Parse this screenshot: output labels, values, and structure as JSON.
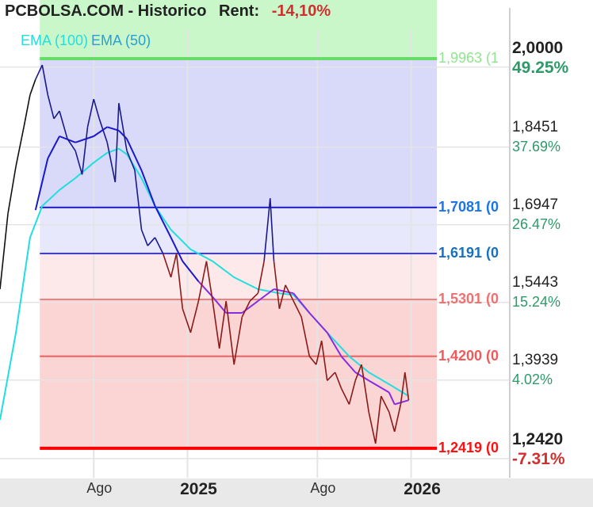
{
  "header": {
    "title": "PCBOLSA.COM - Historico",
    "rent_label": "Rent:",
    "rent_value": "-14,10%"
  },
  "legend": [
    {
      "label": "EMA (100)",
      "color": "#22dede"
    },
    {
      "label": "EMA (50)",
      "color": "#2a9fd6"
    }
  ],
  "chart_data": {
    "type": "line",
    "xlim": [
      "2024-03-01",
      "2026-06-11"
    ],
    "ylim": [
      1.185,
      2.1098
    ],
    "x_ticks": [
      {
        "date": "2024-08-01",
        "label": "Ago",
        "bold": false
      },
      {
        "date": "2025-01-01",
        "label": "2025",
        "bold": true
      },
      {
        "date": "2025-08-01",
        "label": "Ago",
        "bold": false
      },
      {
        "date": "2026-01-01",
        "label": "2026",
        "bold": true
      }
    ],
    "y_ticks": [
      {
        "value": 2.0,
        "label": "2,0000",
        "pct": "49.25%",
        "bold": true,
        "negative": false
      },
      {
        "value": 1.8451,
        "label": "1,8451",
        "pct": "37.69%",
        "bold": false,
        "negative": false
      },
      {
        "value": 1.6947,
        "label": "1,6947",
        "pct": "26.47%",
        "bold": false,
        "negative": false
      },
      {
        "value": 1.5443,
        "label": "1,5443",
        "pct": "15.24%",
        "bold": false,
        "negative": false
      },
      {
        "value": 1.3939,
        "label": "1,3939",
        "pct": "4.02%",
        "bold": false,
        "negative": false
      },
      {
        "value": 1.242,
        "label": "1,2420",
        "pct": "-7.31%",
        "bold": true,
        "negative": true
      }
    ],
    "fib_range": [
      "2024-05-05",
      "2026-02-12"
    ],
    "fib_levels": [
      {
        "value": 1.9963,
        "label": "1,9963 (1",
        "color": "#66dd66",
        "text_color": "#8ee68e"
      },
      {
        "value": 1.7081,
        "label": "1,7081 (0",
        "color": "#1a1aff",
        "text_color": "#1a73e8"
      },
      {
        "value": 1.6191,
        "label": "1,6191 (0",
        "color": "#3a3aff",
        "text_color": "#1a6fbf"
      },
      {
        "value": 1.5301,
        "label": "1,5301 (0",
        "color": "#f08080",
        "text_color": "#f07070"
      },
      {
        "value": 1.42,
        "label": "1,4200 (0",
        "color": "#f06060",
        "text_color": "#f05a5a"
      },
      {
        "value": 1.2419,
        "label": "1,2419 (0",
        "color": "#ff0000",
        "text_color": "#ff1010"
      }
    ],
    "zones": [
      {
        "from": 2.1098,
        "to": 1.9963,
        "color": "#c9f7c9"
      },
      {
        "from": 1.9963,
        "to": 1.7081,
        "color": "#d9d9fa"
      },
      {
        "from": 1.7081,
        "to": 1.6191,
        "color": "#e8e8fc"
      },
      {
        "from": 1.6191,
        "to": 1.5301,
        "color": "#fde9e9"
      },
      {
        "from": 1.5301,
        "to": 1.2419,
        "color": "#fbd4d4"
      }
    ],
    "series": [
      {
        "key": "price",
        "points": [
          [
            "2024-03-01",
            1.55
          ],
          [
            "2024-03-14",
            1.696
          ],
          [
            "2024-03-27",
            1.788
          ],
          [
            "2024-04-09",
            1.864
          ],
          [
            "2024-04-19",
            1.926
          ],
          [
            "2024-04-28",
            1.956
          ],
          [
            "2024-05-09",
            1.984
          ],
          [
            "2024-05-18",
            1.926
          ],
          [
            "2024-05-28",
            1.88
          ],
          [
            "2024-06-06",
            1.895
          ],
          [
            "2024-06-19",
            1.841
          ],
          [
            "2024-07-02",
            1.818
          ],
          [
            "2024-07-13",
            1.772
          ],
          [
            "2024-07-22",
            1.864
          ],
          [
            "2024-08-01",
            1.918
          ],
          [
            "2024-08-10",
            1.88
          ],
          [
            "2024-08-23",
            1.834
          ],
          [
            "2024-09-05",
            1.757
          ],
          [
            "2024-09-11",
            1.91
          ],
          [
            "2024-09-24",
            1.818
          ],
          [
            "2024-10-07",
            1.78
          ],
          [
            "2024-10-18",
            1.665
          ],
          [
            "2024-10-28",
            1.634
          ],
          [
            "2024-11-09",
            1.65
          ],
          [
            "2024-11-22",
            1.619
          ],
          [
            "2024-12-05",
            1.573
          ],
          [
            "2024-12-14",
            1.619
          ],
          [
            "2024-12-24",
            1.512
          ],
          [
            "2025-01-06",
            1.466
          ],
          [
            "2025-01-19",
            1.527
          ],
          [
            "2025-02-01",
            1.604
          ],
          [
            "2025-02-11",
            1.527
          ],
          [
            "2025-02-22",
            1.435
          ],
          [
            "2025-03-05",
            1.527
          ],
          [
            "2025-03-18",
            1.404
          ],
          [
            "2025-03-31",
            1.496
          ],
          [
            "2025-04-13",
            1.527
          ],
          [
            "2025-04-26",
            1.542
          ],
          [
            "2025-05-06",
            1.604
          ],
          [
            "2025-05-16",
            1.726
          ],
          [
            "2025-05-22",
            1.604
          ],
          [
            "2025-05-31",
            1.512
          ],
          [
            "2025-06-10",
            1.558
          ],
          [
            "2025-06-23",
            1.527
          ],
          [
            "2025-07-06",
            1.496
          ],
          [
            "2025-07-19",
            1.42
          ],
          [
            "2025-07-30",
            1.404
          ],
          [
            "2025-08-08",
            1.45
          ],
          [
            "2025-08-17",
            1.373
          ],
          [
            "2025-08-30",
            1.389
          ],
          [
            "2025-09-09",
            1.358
          ],
          [
            "2025-09-22",
            1.327
          ],
          [
            "2025-10-02",
            1.373
          ],
          [
            "2025-10-12",
            1.404
          ],
          [
            "2025-10-24",
            1.312
          ],
          [
            "2025-11-04",
            1.251
          ],
          [
            "2025-11-13",
            1.343
          ],
          [
            "2025-11-26",
            1.312
          ],
          [
            "2025-12-05",
            1.274
          ],
          [
            "2025-12-15",
            1.327
          ],
          [
            "2025-12-22",
            1.389
          ],
          [
            "2025-12-28",
            1.335
          ]
        ]
      },
      {
        "key": "ema50",
        "name": "EMA (50)",
        "color": "#1a1acc",
        "color_low": "#8a2be2",
        "points": [
          [
            "2024-04-28",
            1.703
          ],
          [
            "2024-05-18",
            1.803
          ],
          [
            "2024-06-06",
            1.846
          ],
          [
            "2024-07-02",
            1.834
          ],
          [
            "2024-08-01",
            1.846
          ],
          [
            "2024-08-23",
            1.864
          ],
          [
            "2024-09-11",
            1.857
          ],
          [
            "2024-09-24",
            1.841
          ],
          [
            "2024-10-18",
            1.78
          ],
          [
            "2024-11-09",
            1.711
          ],
          [
            "2024-12-05",
            1.65
          ],
          [
            "2024-12-24",
            1.604
          ],
          [
            "2025-01-19",
            1.565
          ],
          [
            "2025-02-11",
            1.535
          ],
          [
            "2025-03-05",
            1.504
          ],
          [
            "2025-03-31",
            1.504
          ],
          [
            "2025-04-26",
            1.527
          ],
          [
            "2025-05-22",
            1.55
          ],
          [
            "2025-06-23",
            1.542
          ],
          [
            "2025-07-19",
            1.504
          ],
          [
            "2025-08-17",
            1.466
          ],
          [
            "2025-09-09",
            1.42
          ],
          [
            "2025-10-02",
            1.389
          ],
          [
            "2025-10-24",
            1.373
          ],
          [
            "2025-11-26",
            1.35
          ],
          [
            "2025-12-05",
            1.327
          ],
          [
            "2025-12-28",
            1.335
          ]
        ]
      },
      {
        "key": "ema100",
        "name": "EMA (100)",
        "color": "#22dede",
        "points": [
          [
            "2024-03-01",
            1.297
          ],
          [
            "2024-03-27",
            1.466
          ],
          [
            "2024-04-19",
            1.65
          ],
          [
            "2024-05-09",
            1.711
          ],
          [
            "2024-06-06",
            1.742
          ],
          [
            "2024-07-02",
            1.765
          ],
          [
            "2024-08-01",
            1.795
          ],
          [
            "2024-08-23",
            1.814
          ],
          [
            "2024-09-11",
            1.822
          ],
          [
            "2024-09-24",
            1.811
          ],
          [
            "2024-10-18",
            1.765
          ],
          [
            "2024-11-09",
            1.711
          ],
          [
            "2024-12-05",
            1.665
          ],
          [
            "2025-01-06",
            1.627
          ],
          [
            "2025-02-11",
            1.604
          ],
          [
            "2025-03-18",
            1.573
          ],
          [
            "2025-04-26",
            1.55
          ],
          [
            "2025-05-31",
            1.542
          ],
          [
            "2025-06-23",
            1.539
          ],
          [
            "2025-07-19",
            1.504
          ],
          [
            "2025-08-17",
            1.466
          ],
          [
            "2025-09-22",
            1.42
          ],
          [
            "2025-10-24",
            1.389
          ],
          [
            "2025-11-26",
            1.366
          ],
          [
            "2025-12-28",
            1.343
          ]
        ]
      }
    ],
    "colors": {
      "price_pre": "#111111",
      "price_high": "#1a1a8c",
      "price_low": "#8b1a1a",
      "grid": "#e4e4e4",
      "axis": "#cfcfcf"
    }
  }
}
